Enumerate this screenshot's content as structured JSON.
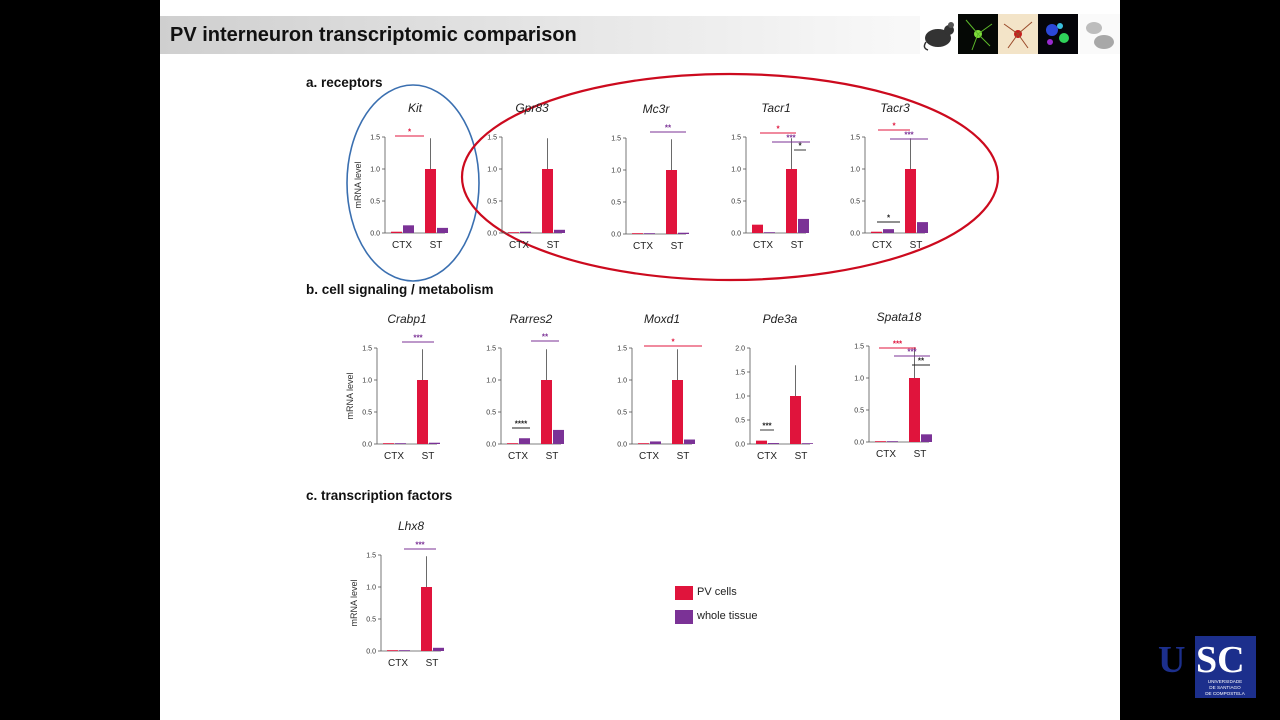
{
  "slide": {
    "title": "PV interneuron transcriptomic comparison"
  },
  "sections": {
    "a": "a. receptors",
    "b": "b. cell signaling / metabolism",
    "c": "c. transcription factors"
  },
  "legend": [
    {
      "label": "PV cells",
      "color": "#e0143c"
    },
    {
      "label": "whole tissue",
      "color": "#7b3296"
    }
  ],
  "colors": {
    "pv": "#e0143c",
    "tissue": "#7b3296",
    "highlight_blue": "#3a6fb0",
    "highlight_red": "#cc0a1e"
  },
  "header_icons": [
    "mouse-icon",
    "green-neuron-icon",
    "red-neuron-icon",
    "blue-green-cells-icon",
    "gray-brain-icon"
  ],
  "logo": {
    "text": "USC",
    "subtitle": "UNIVERSIDADE DE SANTIAGO DE COMPOSTELA"
  },
  "chart_data": [
    {
      "type": "bar",
      "gene": "Kit",
      "categories": [
        "CTX",
        "ST"
      ],
      "ylabel": "mRNA level",
      "ylim": [
        0,
        1.5
      ],
      "yticks": [
        "0.0",
        "0.5",
        "1.0",
        "1.5"
      ],
      "series": [
        {
          "name": "PV cells",
          "values": [
            0.02,
            1.0
          ]
        },
        {
          "name": "whole tissue",
          "values": [
            0.12,
            0.08
          ]
        }
      ],
      "significance": [
        "*"
      ]
    },
    {
      "type": "bar",
      "gene": "Gpr83",
      "categories": [
        "CTX",
        "ST"
      ],
      "ylabel": "",
      "ylim": [
        0,
        1.5
      ],
      "yticks": [
        "0.0",
        "0.5",
        "1.0",
        "1.5"
      ],
      "series": [
        {
          "name": "PV cells",
          "values": [
            0.01,
            1.0
          ]
        },
        {
          "name": "whole tissue",
          "values": [
            0.02,
            0.05
          ]
        }
      ],
      "significance": []
    },
    {
      "type": "bar",
      "gene": "Mc3r",
      "categories": [
        "CTX",
        "ST"
      ],
      "ylabel": "",
      "ylim": [
        0,
        1.5
      ],
      "yticks": [
        "0.0",
        "0.5",
        "1.0",
        "1.5"
      ],
      "series": [
        {
          "name": "PV cells",
          "values": [
            0.0,
            1.0
          ]
        },
        {
          "name": "whole tissue",
          "values": [
            0.0,
            0.02
          ]
        }
      ],
      "significance": [
        "**"
      ]
    },
    {
      "type": "bar",
      "gene": "Tacr1",
      "categories": [
        "CTX",
        "ST"
      ],
      "ylabel": "",
      "ylim": [
        0,
        1.5
      ],
      "yticks": [
        "0.0",
        "0.5",
        "1.0",
        "1.5"
      ],
      "series": [
        {
          "name": "PV cells",
          "values": [
            0.13,
            1.0
          ]
        },
        {
          "name": "whole tissue",
          "values": [
            0.0,
            0.22
          ]
        }
      ],
      "significance": [
        "*",
        "***",
        "*"
      ]
    },
    {
      "type": "bar",
      "gene": "Tacr3",
      "categories": [
        "CTX",
        "ST"
      ],
      "ylabel": "",
      "ylim": [
        0,
        1.5
      ],
      "yticks": [
        "0.0",
        "0.5",
        "1.0",
        "1.5"
      ],
      "series": [
        {
          "name": "PV cells",
          "values": [
            0.02,
            1.0
          ]
        },
        {
          "name": "whole tissue",
          "values": [
            0.06,
            0.17
          ]
        }
      ],
      "significance": [
        "*",
        "***",
        "*"
      ]
    },
    {
      "type": "bar",
      "gene": "Crabp1",
      "categories": [
        "CTX",
        "ST"
      ],
      "ylabel": "mRNA level",
      "ylim": [
        0,
        1.5
      ],
      "yticks": [
        "0.0",
        "0.5",
        "1.0",
        "1.5"
      ],
      "series": [
        {
          "name": "PV cells",
          "values": [
            0.01,
            1.0
          ]
        },
        {
          "name": "whole tissue",
          "values": [
            0.0,
            0.02
          ]
        }
      ],
      "significance": [
        "***"
      ]
    },
    {
      "type": "bar",
      "gene": "Rarres2",
      "categories": [
        "CTX",
        "ST"
      ],
      "ylabel": "",
      "ylim": [
        0,
        1.5
      ],
      "yticks": [
        "0.0",
        "0.5",
        "1.0",
        "1.5"
      ],
      "series": [
        {
          "name": "PV cells",
          "values": [
            0.01,
            1.0
          ]
        },
        {
          "name": "whole tissue",
          "values": [
            0.09,
            0.22
          ]
        }
      ],
      "significance": [
        "****",
        "**"
      ]
    },
    {
      "type": "bar",
      "gene": "Moxd1",
      "categories": [
        "CTX",
        "ST"
      ],
      "ylabel": "",
      "ylim": [
        0,
        1.5
      ],
      "yticks": [
        "0.0",
        "0.5",
        "1.0",
        "1.5"
      ],
      "series": [
        {
          "name": "PV cells",
          "values": [
            0.0,
            1.0
          ]
        },
        {
          "name": "whole tissue",
          "values": [
            0.04,
            0.07
          ]
        }
      ],
      "significance": [
        "*"
      ]
    },
    {
      "type": "bar",
      "gene": "Pde3a",
      "categories": [
        "CTX",
        "ST"
      ],
      "ylabel": "",
      "ylim": [
        0,
        2.0
      ],
      "yticks": [
        "0.0",
        "0.5",
        "1.0",
        "1.5",
        "2.0"
      ],
      "series": [
        {
          "name": "PV cells",
          "values": [
            0.07,
            1.0
          ]
        },
        {
          "name": "whole tissue",
          "values": [
            0.02,
            0.0
          ]
        }
      ],
      "significance": [
        "***"
      ]
    },
    {
      "type": "bar",
      "gene": "Spata18",
      "categories": [
        "CTX",
        "ST"
      ],
      "ylabel": "",
      "ylim": [
        0,
        1.5
      ],
      "yticks": [
        "0.0",
        "0.5",
        "1.0",
        "1.5"
      ],
      "series": [
        {
          "name": "PV cells",
          "values": [
            0.0,
            1.0
          ]
        },
        {
          "name": "whole tissue",
          "values": [
            0.01,
            0.12
          ]
        }
      ],
      "significance": [
        "***",
        "***",
        "**"
      ]
    },
    {
      "type": "bar",
      "gene": "Lhx8",
      "categories": [
        "CTX",
        "ST"
      ],
      "ylabel": "mRNA level",
      "ylim": [
        0,
        1.5
      ],
      "yticks": [
        "0.0",
        "0.5",
        "1.0",
        "1.5"
      ],
      "series": [
        {
          "name": "PV cells",
          "values": [
            0.01,
            1.0
          ]
        },
        {
          "name": "whole tissue",
          "values": [
            0.01,
            0.05
          ]
        }
      ],
      "significance": [
        "***"
      ]
    }
  ]
}
